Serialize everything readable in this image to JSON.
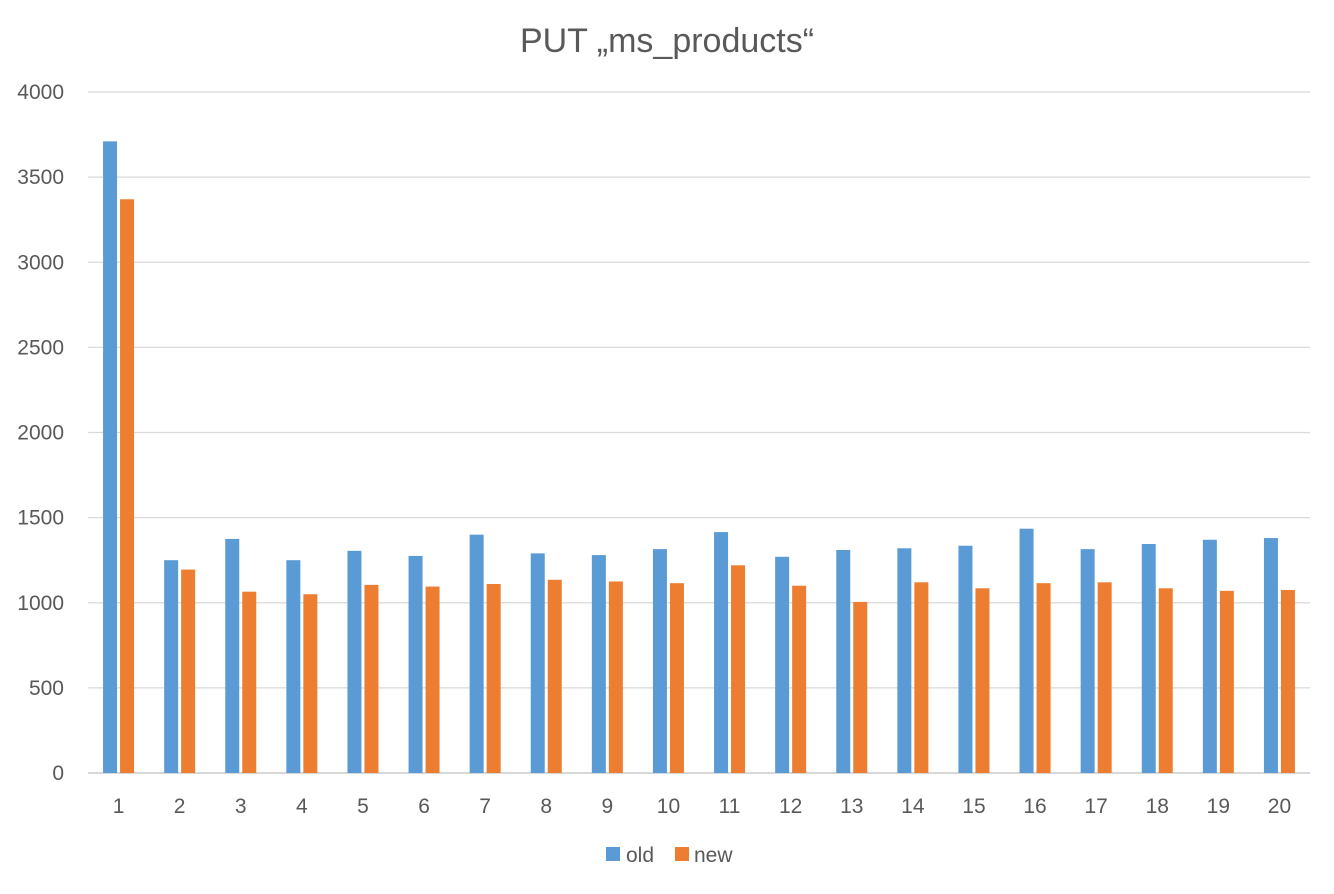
{
  "chart_data": {
    "type": "bar",
    "title": "PUT „ms_products“",
    "xlabel": "",
    "ylabel": "",
    "ylim": [
      0,
      4000
    ],
    "yticks": [
      0,
      500,
      1000,
      1500,
      2000,
      2500,
      3000,
      3500,
      4000
    ],
    "grid": true,
    "legend_position": "bottom",
    "categories": [
      "1",
      "2",
      "3",
      "4",
      "5",
      "6",
      "7",
      "8",
      "9",
      "10",
      "11",
      "12",
      "13",
      "14",
      "15",
      "16",
      "17",
      "18",
      "19",
      "20"
    ],
    "series": [
      {
        "name": "old",
        "color": "#5B9BD5",
        "values": [
          3710,
          1250,
          1375,
          1250,
          1305,
          1275,
          1400,
          1290,
          1280,
          1315,
          1415,
          1270,
          1310,
          1320,
          1335,
          1435,
          1315,
          1345,
          1370,
          1380
        ]
      },
      {
        "name": "new",
        "color": "#ED7D31",
        "values": [
          3370,
          1195,
          1065,
          1050,
          1105,
          1095,
          1110,
          1135,
          1125,
          1115,
          1220,
          1100,
          1005,
          1120,
          1085,
          1115,
          1120,
          1085,
          1070,
          1075
        ]
      }
    ]
  }
}
